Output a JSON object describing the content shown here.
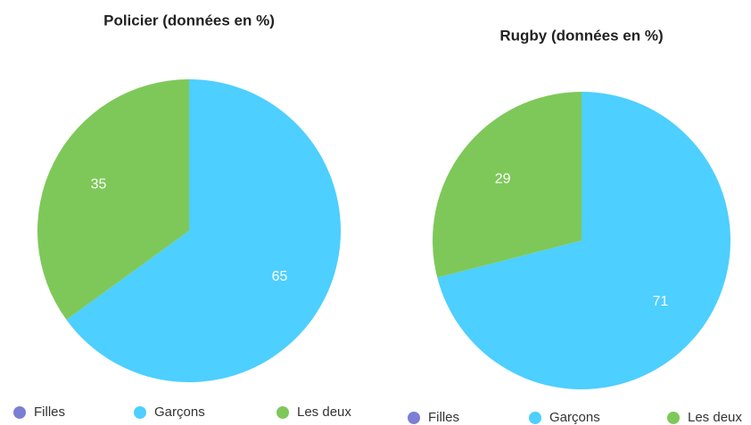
{
  "chart_data": [
    {
      "type": "pie",
      "title": "Policier (données en %)",
      "categories": [
        "Filles",
        "Garçons",
        "Les deux"
      ],
      "values": [
        0,
        65,
        35
      ],
      "colors": [
        "#7b7fd4",
        "#4dcfff",
        "#7ec85a"
      ]
    },
    {
      "type": "pie",
      "title": "Rugby (données en %)",
      "categories": [
        "Filles",
        "Garçons",
        "Les deux"
      ],
      "values": [
        0,
        71,
        29
      ],
      "colors": [
        "#7b7fd4",
        "#4dcfff",
        "#7ec85a"
      ]
    }
  ]
}
